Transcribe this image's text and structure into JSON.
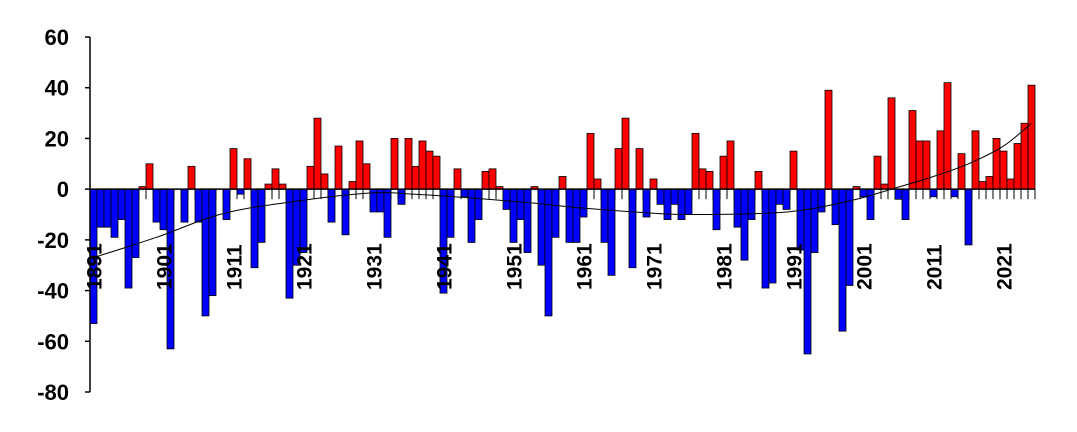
{
  "chart_data": {
    "type": "bar",
    "title": "",
    "xlabel": "",
    "ylabel": "",
    "ylim": [
      -80,
      60
    ],
    "yticks": [
      60,
      40,
      20,
      0,
      -20,
      -40,
      -60,
      -80
    ],
    "x_start": 1891,
    "x_end": 2025,
    "xtick_labels": [
      "1891",
      "1901",
      "1911",
      "1921",
      "1931",
      "1941",
      "1951",
      "1961",
      "1971",
      "1981",
      "1991",
      "2001",
      "2011",
      "2021"
    ],
    "grid": false,
    "colors": {
      "positive": "#ff0000",
      "negative": "#0000ff",
      "trend": "#000000",
      "axis": "#000000"
    },
    "values": [
      -53,
      -15,
      -15,
      -19,
      -12,
      -39,
      -27,
      1,
      10,
      -13,
      -16,
      -63,
      0,
      -13,
      9,
      -13,
      -50,
      -42,
      0,
      -12,
      16,
      -2,
      12,
      -31,
      -21,
      2,
      8,
      2,
      -43,
      -30,
      -25,
      9,
      28,
      6,
      -13,
      17,
      -18,
      3,
      19,
      10,
      -9,
      -9,
      -19,
      20,
      -6,
      20,
      9,
      19,
      15,
      13,
      -41,
      -19,
      8,
      -3,
      -21,
      -12,
      7,
      8,
      1,
      -8,
      -21,
      -12,
      -25,
      1,
      -30,
      -50,
      -19,
      5,
      -21,
      -21,
      -11,
      22,
      4,
      -21,
      -34,
      16,
      28,
      -31,
      16,
      -11,
      4,
      -6,
      -12,
      -6,
      -12,
      -10,
      22,
      8,
      7,
      -16,
      13,
      19,
      -15,
      -28,
      -12,
      7,
      -39,
      -37,
      -6,
      -8,
      15,
      -24,
      -65,
      -25,
      -9,
      39,
      -14,
      -56,
      -38,
      1,
      -3,
      -12,
      13,
      2,
      36,
      -4,
      -12,
      31,
      19,
      19,
      -3,
      23,
      42,
      -3,
      14,
      -22,
      23,
      3,
      5,
      20,
      15,
      4,
      18,
      26,
      41
    ],
    "trend": {
      "x": [
        1891,
        1900,
        1909,
        1918,
        1930,
        1937,
        1945,
        1954,
        1961,
        1971,
        1976,
        1987,
        1993,
        2000,
        2005,
        2011,
        2016,
        2021,
        2025
      ],
      "y": [
        -27,
        -19,
        -10,
        -5.5,
        -1.6,
        -2,
        -3.5,
        -5.5,
        -7.5,
        -9.5,
        -10,
        -9.5,
        -8,
        -4,
        0,
        5,
        10,
        17,
        26
      ]
    }
  }
}
